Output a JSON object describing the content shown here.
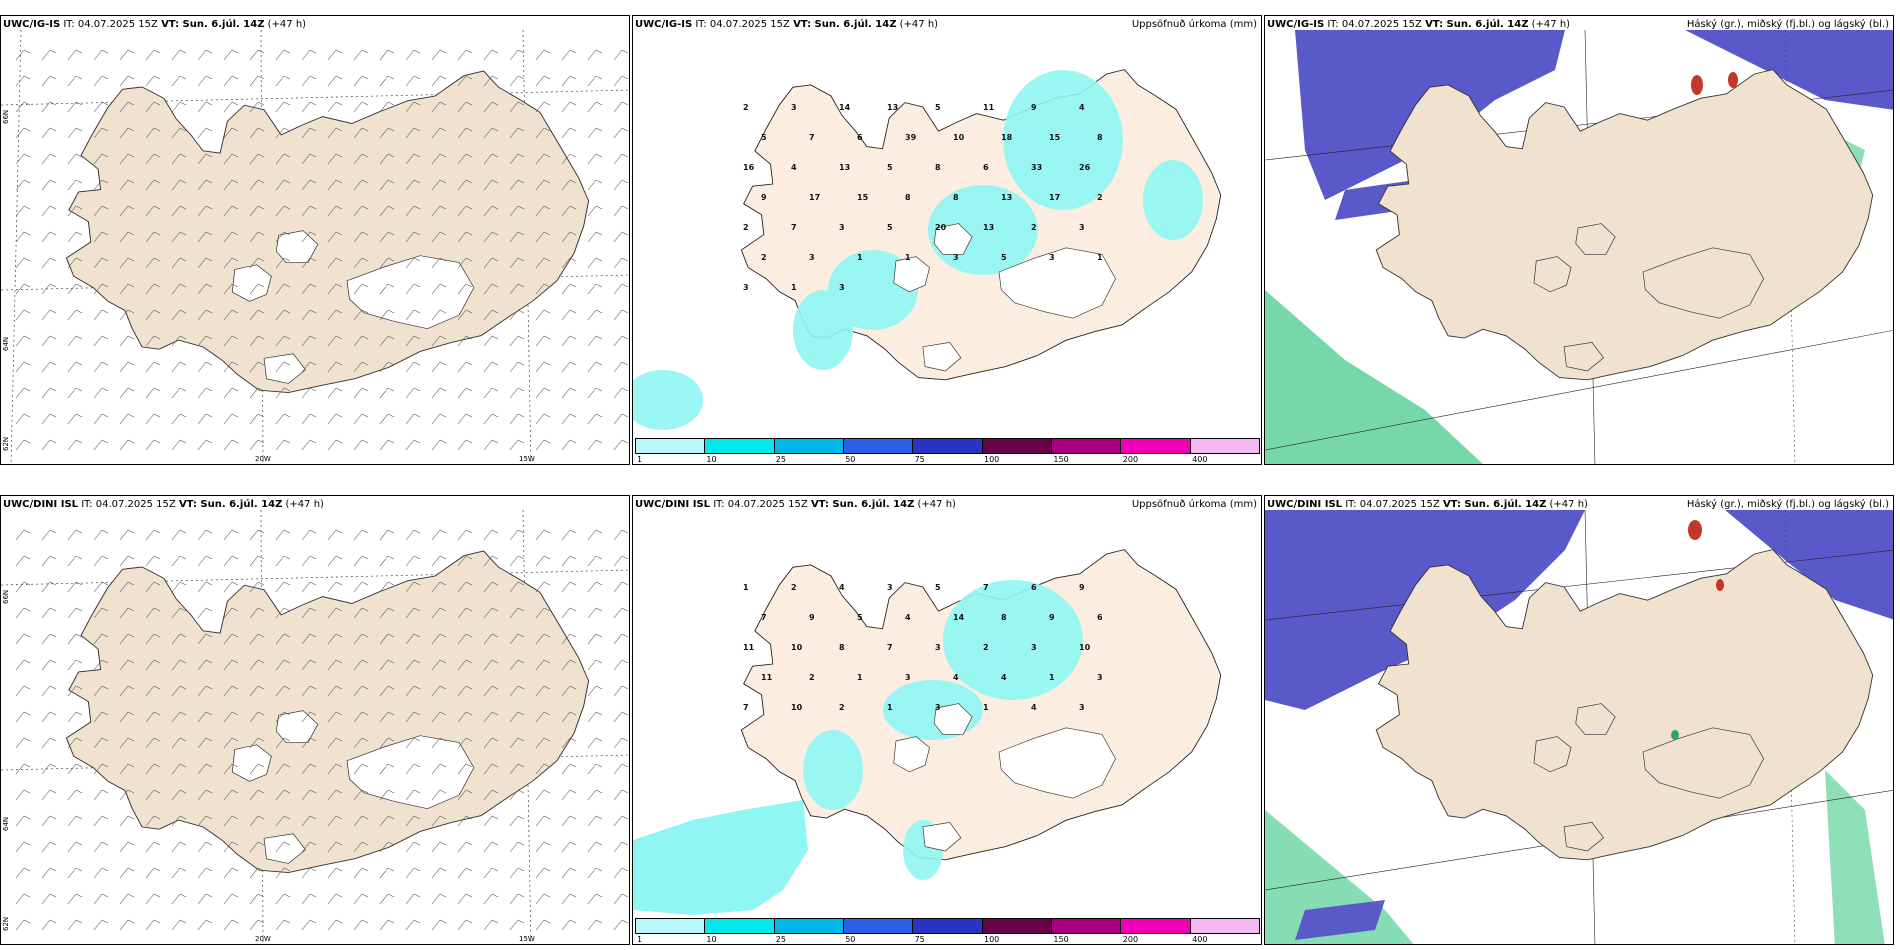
{
  "rows": [
    {
      "wind": {
        "model": "UWC/IG-IS",
        "it": "IT: 04.07.2025 15Z",
        "vt": "VT: Sun. 6.júl. 14Z",
        "lead": "(+47 h)"
      },
      "precip": {
        "model": "UWC/IG-IS",
        "it": "IT: 04.07.2025 15Z",
        "vt": "VT: Sun. 6.júl. 14Z",
        "lead": "(+47 h)",
        "label": "Uppsöfnuð úrkoma (mm)"
      },
      "cloud": {
        "model": "UWC/IG-IS",
        "it": "IT: 04.07.2025 15Z",
        "vt": "VT: Sun. 6.júl. 14Z",
        "lead": "(+47 h)",
        "label": "Háský (gr.), miðský (fj.bl.) og lágský (bl.)"
      }
    },
    {
      "wind": {
        "model": "UWC/DINI ISL",
        "it": "IT: 04.07.2025 15Z",
        "vt": "VT: Sun. 6.júl. 14Z",
        "lead": "(+47 h)"
      },
      "precip": {
        "model": "UWC/DINI ISL",
        "it": "IT: 04.07.2025 15Z",
        "vt": "VT: Sun. 6.júl. 14Z",
        "lead": "(+47 h)",
        "label": "Uppsöfnuð úrkoma (mm)"
      },
      "cloud": {
        "model": "UWC/DINI ISL",
        "it": "IT: 04.07.2025 15Z",
        "vt": "VT: Sun. 6.júl. 14Z",
        "lead": "(+47 h)",
        "label": "Háský (gr.), miðský (fj.bl.) og lágský (bl.)"
      }
    }
  ],
  "axes": {
    "lon": [
      "20W",
      "15W"
    ],
    "lat": [
      "66N",
      "64N",
      "62N"
    ]
  },
  "colorbar": {
    "ticks": [
      "1",
      "10",
      "25",
      "50",
      "75",
      "100",
      "150",
      "200",
      "400"
    ],
    "colors": [
      "#b9f8f8",
      "#00e9ea",
      "#00b8e8",
      "#2e5ee8",
      "#2a33c8",
      "#6a0045",
      "#a8007e",
      "#f200b8",
      "#f6b6f2"
    ]
  },
  "colors": {
    "land": "#f1e2d0",
    "landPale": "#fbeee0",
    "precip": "#8ff6f3",
    "high": "#5a59c9",
    "low": "#5ed19a"
  },
  "precip_values_top": [
    "2",
    "3",
    "14",
    "13",
    "5",
    "11",
    "9",
    "4",
    "5",
    "7",
    "6",
    "39",
    "10",
    "18",
    "15",
    "8",
    "16",
    "4",
    "13",
    "5",
    "8",
    "6",
    "33",
    "26",
    "9",
    "17",
    "15",
    "8",
    "8",
    "13",
    "17",
    "2",
    "2",
    "7",
    "3",
    "5",
    "20",
    "13",
    "2",
    "3",
    "2",
    "3",
    "1",
    "1",
    "3",
    "5",
    "3",
    "1",
    "3",
    "1",
    "3"
  ],
  "precip_values_bottom": [
    "1",
    "2",
    "4",
    "3",
    "5",
    "7",
    "6",
    "9",
    "7",
    "9",
    "5",
    "4",
    "14",
    "8",
    "9",
    "6",
    "11",
    "10",
    "8",
    "7",
    "3",
    "2",
    "3",
    "10",
    "11",
    "2",
    "1",
    "3",
    "4",
    "4",
    "1",
    "3",
    "7",
    "10",
    "2",
    "1",
    "3",
    "1",
    "4",
    "3"
  ]
}
